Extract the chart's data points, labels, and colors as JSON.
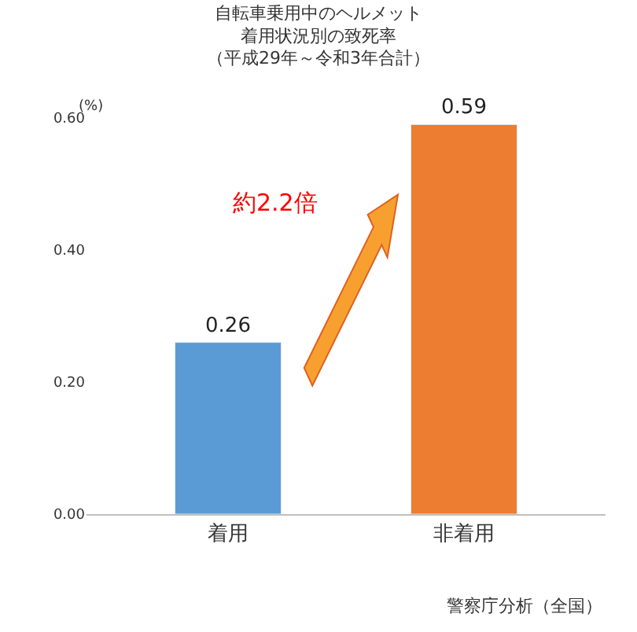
{
  "chart_data": {
    "type": "bar",
    "title": "自転車乗用中のヘルメット着用状況別の致死率",
    "subtitle": "（平成29年～令和3年合計）",
    "ylabel": "(%)",
    "categories": [
      "着用",
      "非着用"
    ],
    "values": [
      0.26,
      0.59
    ],
    "colors": [
      "#5b9bd5",
      "#ed7d31"
    ],
    "ylim": [
      0,
      0.6
    ],
    "yticks": [
      {
        "value": 0,
        "label": "0.00"
      },
      {
        "value": 0.2,
        "label": "0.20"
      },
      {
        "value": 0.4,
        "label": "0.40"
      },
      {
        "value": 0.6,
        "label": "0.60"
      }
    ],
    "data_labels": true,
    "annotations": [
      "約2.2倍",
      "警察庁分析（全国）"
    ]
  }
}
